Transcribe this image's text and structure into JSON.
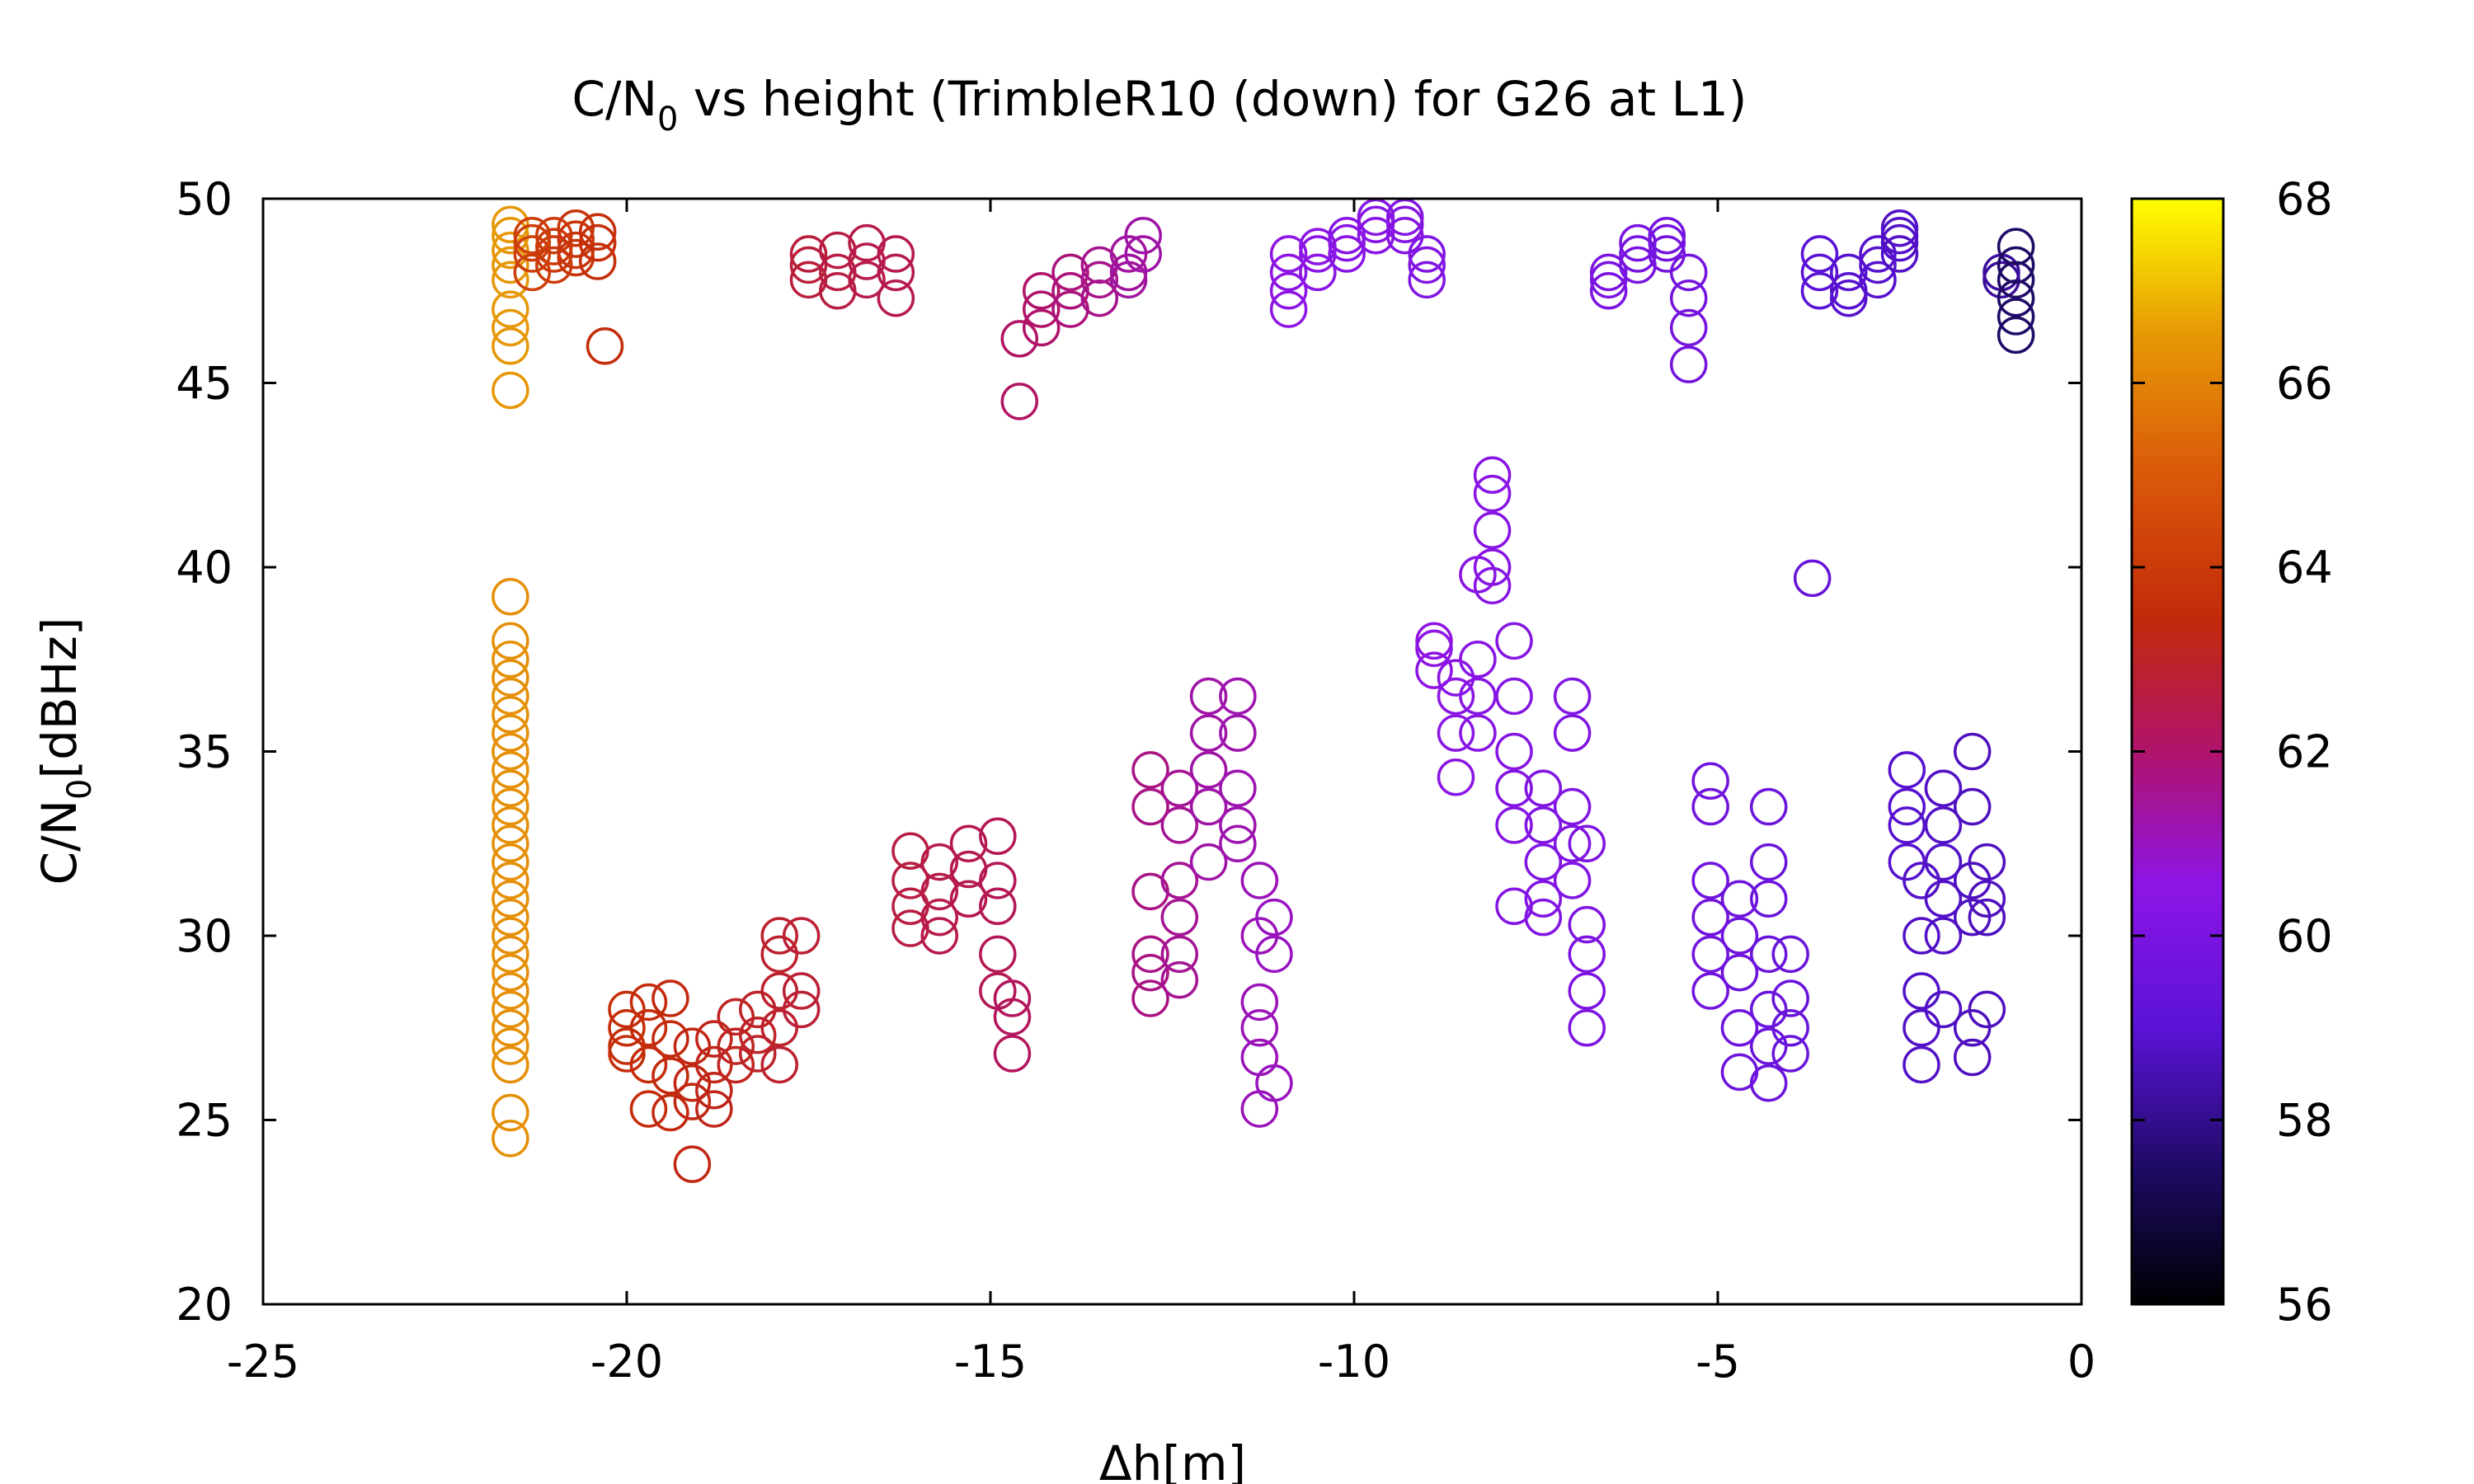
{
  "chart_data": {
    "type": "scatter",
    "title": "C/N",
    "title_sub": "0",
    "title_rest": " vs height (TrimbleR10 (down) for G26 at L1)",
    "xlabel": "Δh[m]",
    "ylabel": "C/N",
    "ylabel_sub": "0",
    "ylabel_rest": "[dBHz]",
    "xlim": [
      -25,
      0
    ],
    "ylim": [
      20,
      50
    ],
    "xticks": [
      "-25",
      "-20",
      "-15",
      "-10",
      "-5",
      "0"
    ],
    "yticks": [
      "20",
      "25",
      "30",
      "35",
      "40",
      "45",
      "50"
    ],
    "colorbar": {
      "range": [
        56,
        68
      ],
      "ticks": [
        "56",
        "58",
        "60",
        "62",
        "64",
        "66",
        "68"
      ]
    },
    "grid": false,
    "series": [
      {
        "x": -21.6,
        "y": [
          47.0,
          47.8,
          48.2,
          48.6,
          49.0,
          49.3,
          46.5,
          46.0,
          44.8
        ],
        "c": 66.5
      },
      {
        "x": -21.6,
        "y": [
          24.5,
          25.2,
          26.5,
          27.0,
          27.5,
          28.0,
          28.5,
          29.0,
          29.5,
          30.0,
          30.5,
          31.0,
          31.5,
          32.0,
          32.5,
          33.0,
          33.5,
          34.0,
          34.5,
          35.0,
          35.5,
          36.0,
          36.5,
          37.0,
          37.5,
          38.0,
          39.2
        ],
        "c": 66.3
      },
      {
        "x": -21.3,
        "y": [
          48.5,
          48.0,
          48.8,
          49.0
        ],
        "c": 64.2
      },
      {
        "x": -21.0,
        "y": [
          48.2,
          48.7,
          49.0,
          48.5
        ],
        "c": 64.0
      },
      {
        "x": -20.7,
        "y": [
          48.4,
          48.9,
          49.2,
          48.6
        ],
        "c": 63.8
      },
      {
        "x": -20.4,
        "y": [
          48.3,
          48.8,
          49.1
        ],
        "c": 63.6
      },
      {
        "x": -20.3,
        "y": [
          46.0
        ],
        "c": 63.5
      },
      {
        "x": -20.0,
        "y": [
          27.5,
          28.0,
          27.0,
          26.8
        ],
        "c": 63.6
      },
      {
        "x": -19.7,
        "y": [
          28.2,
          27.5,
          26.5,
          25.3
        ],
        "c": 63.5
      },
      {
        "x": -19.4,
        "y": [
          28.3,
          27.2,
          26.2,
          25.2
        ],
        "c": 63.4
      },
      {
        "x": -19.1,
        "y": [
          27.0,
          26.0,
          25.5,
          23.8
        ],
        "c": 63.3
      },
      {
        "x": -18.8,
        "y": [
          27.2,
          26.5,
          25.3,
          25.8
        ],
        "c": 63.2
      },
      {
        "x": -18.5,
        "y": [
          27.8,
          27.0,
          26.5
        ],
        "c": 63.1
      },
      {
        "x": -18.2,
        "y": [
          28.0,
          27.3,
          26.8
        ],
        "c": 63.0
      },
      {
        "x": -17.9,
        "y": [
          30.0,
          29.5,
          28.5,
          27.5,
          26.5
        ],
        "c": 62.9
      },
      {
        "x": -17.6,
        "y": [
          30.0,
          28.5,
          28.0
        ],
        "c": 62.8
      },
      {
        "x": -17.5,
        "y": [
          48.5,
          48.2,
          47.8
        ],
        "c": 62.7
      },
      {
        "x": -17.1,
        "y": [
          48.6,
          48.0,
          47.5
        ],
        "c": 62.6
      },
      {
        "x": -16.7,
        "y": [
          48.8,
          48.3,
          47.8
        ],
        "c": 62.5
      },
      {
        "x": -16.3,
        "y": [
          48.5,
          48.0,
          47.3
        ],
        "c": 62.4
      },
      {
        "x": -16.1,
        "y": [
          32.3,
          31.5,
          30.8,
          30.2
        ],
        "c": 62.6
      },
      {
        "x": -15.7,
        "y": [
          32.0,
          31.2,
          30.5,
          30.0
        ],
        "c": 62.5
      },
      {
        "x": -15.3,
        "y": [
          32.5,
          31.8,
          31.0
        ],
        "c": 62.4
      },
      {
        "x": -14.9,
        "y": [
          32.7,
          31.5,
          30.8,
          29.5,
          28.5
        ],
        "c": 62.3
      },
      {
        "x": -14.7,
        "y": [
          28.3,
          27.8,
          26.8
        ],
        "c": 62.2
      },
      {
        "x": -14.6,
        "y": [
          46.2,
          44.5
        ],
        "c": 62.1
      },
      {
        "x": -14.3,
        "y": [
          47.0,
          46.5,
          47.5
        ],
        "c": 62.0
      },
      {
        "x": -13.9,
        "y": [
          47.5,
          47.0,
          48.0
        ],
        "c": 61.8
      },
      {
        "x": -13.5,
        "y": [
          48.2,
          47.8,
          47.3
        ],
        "c": 61.6
      },
      {
        "x": -13.1,
        "y": [
          48.5,
          48.0,
          47.8
        ],
        "c": 61.4
      },
      {
        "x": -12.9,
        "y": [
          49.0,
          48.5
        ],
        "c": 61.3
      },
      {
        "x": -12.8,
        "y": [
          28.3,
          29.0,
          29.5,
          31.2,
          33.5,
          34.5
        ],
        "c": 61.7
      },
      {
        "x": -12.4,
        "y": [
          34.0,
          33.0,
          31.5,
          30.5,
          29.5,
          28.8
        ],
        "c": 61.5
      },
      {
        "x": -12.0,
        "y": [
          36.5,
          35.5,
          34.5,
          33.5,
          32.0
        ],
        "c": 61.3
      },
      {
        "x": -11.6,
        "y": [
          36.5,
          35.5,
          34.0,
          33.0,
          32.5
        ],
        "c": 61.2
      },
      {
        "x": -11.3,
        "y": [
          31.5,
          30.0,
          28.2,
          27.5,
          26.7,
          25.3
        ],
        "c": 61.1
      },
      {
        "x": -11.1,
        "y": [
          30.5,
          29.5,
          26.0
        ],
        "c": 61.0
      },
      {
        "x": -10.9,
        "y": [
          47.0,
          47.5,
          48.0,
          48.5
        ],
        "c": 60.6
      },
      {
        "x": -10.5,
        "y": [
          48.0,
          48.5,
          48.7
        ],
        "c": 60.5
      },
      {
        "x": -10.1,
        "y": [
          48.5,
          48.8,
          49.0
        ],
        "c": 60.4
      },
      {
        "x": -9.7,
        "y": [
          49.0,
          49.3,
          49.5
        ],
        "c": 60.4
      },
      {
        "x": -9.3,
        "y": [
          49.3,
          49.5,
          49.0
        ],
        "c": 60.3
      },
      {
        "x": -9.0,
        "y": [
          48.5,
          47.8,
          48.2
        ],
        "c": 60.2
      },
      {
        "x": -8.9,
        "y": [
          37.2,
          37.8,
          38.0
        ],
        "c": 60.6
      },
      {
        "x": -8.6,
        "y": [
          37.0,
          36.5,
          35.5,
          34.3
        ],
        "c": 60.5
      },
      {
        "x": -8.3,
        "y": [
          39.8,
          37.5,
          36.5,
          35.5
        ],
        "c": 60.4
      },
      {
        "x": -8.1,
        "y": [
          42.5,
          42.0,
          41.0,
          40.0,
          39.5
        ],
        "c": 60.4
      },
      {
        "x": -7.8,
        "y": [
          38.0,
          36.5,
          35.0,
          34.0,
          33.0,
          30.8
        ],
        "c": 60.3
      },
      {
        "x": -7.4,
        "y": [
          34.0,
          33.0,
          32.0,
          31.0,
          30.5
        ],
        "c": 60.2
      },
      {
        "x": -7.0,
        "y": [
          36.5,
          35.5,
          33.5,
          32.5,
          31.5
        ],
        "c": 60.2
      },
      {
        "x": -6.8,
        "y": [
          32.5,
          30.3,
          29.5,
          28.5,
          27.5
        ],
        "c": 60.1
      },
      {
        "x": -6.5,
        "y": [
          47.5,
          48.0,
          47.8
        ],
        "c": 60.0
      },
      {
        "x": -6.1,
        "y": [
          48.5,
          48.2,
          48.8
        ],
        "c": 59.9
      },
      {
        "x": -5.7,
        "y": [
          48.8,
          48.5,
          49.0
        ],
        "c": 59.8
      },
      {
        "x": -5.4,
        "y": [
          48.0,
          47.3,
          46.5,
          45.5
        ],
        "c": 59.8
      },
      {
        "x": -5.1,
        "y": [
          34.2,
          33.5,
          31.5,
          30.5,
          29.5,
          28.5
        ],
        "c": 59.7
      },
      {
        "x": -4.7,
        "y": [
          31.0,
          30.0,
          29.0,
          27.5,
          26.3
        ],
        "c": 59.6
      },
      {
        "x": -4.3,
        "y": [
          33.5,
          32.0,
          31.0,
          29.5,
          28.0,
          27.0,
          26.0
        ],
        "c": 59.5
      },
      {
        "x": -4.0,
        "y": [
          29.5,
          28.3,
          27.5,
          26.8
        ],
        "c": 59.4
      },
      {
        "x": -3.7,
        "y": [
          39.7
        ],
        "c": 59.4
      },
      {
        "x": -3.6,
        "y": [
          48.5,
          48.0,
          47.5
        ],
        "c": 59.0
      },
      {
        "x": -3.2,
        "y": [
          48.0,
          47.5,
          47.3
        ],
        "c": 58.9
      },
      {
        "x": -2.8,
        "y": [
          48.2,
          47.8,
          48.5
        ],
        "c": 58.9
      },
      {
        "x": -2.5,
        "y": [
          49.0,
          48.8,
          48.5,
          49.2
        ],
        "c": 58.8
      },
      {
        "x": -2.4,
        "y": [
          34.5,
          33.5,
          33.0,
          32.0
        ],
        "c": 58.9
      },
      {
        "x": -2.2,
        "y": [
          31.5,
          30.0,
          28.5,
          27.5,
          26.5
        ],
        "c": 58.8
      },
      {
        "x": -1.9,
        "y": [
          34.0,
          33.0,
          32.0,
          31.0,
          30.0,
          28.0
        ],
        "c": 58.8
      },
      {
        "x": -1.5,
        "y": [
          35.0,
          33.5,
          31.5,
          30.5,
          27.5,
          26.7
        ],
        "c": 58.7
      },
      {
        "x": -1.3,
        "y": [
          32.0,
          31.0,
          30.5,
          28.0
        ],
        "c": 58.7
      },
      {
        "x": -1.1,
        "y": [
          48.0,
          47.8
        ],
        "c": 58.2
      },
      {
        "x": -0.9,
        "y": [
          48.7,
          48.2,
          47.8,
          47.3,
          46.8,
          46.3
        ],
        "c": 57.5
      }
    ]
  }
}
